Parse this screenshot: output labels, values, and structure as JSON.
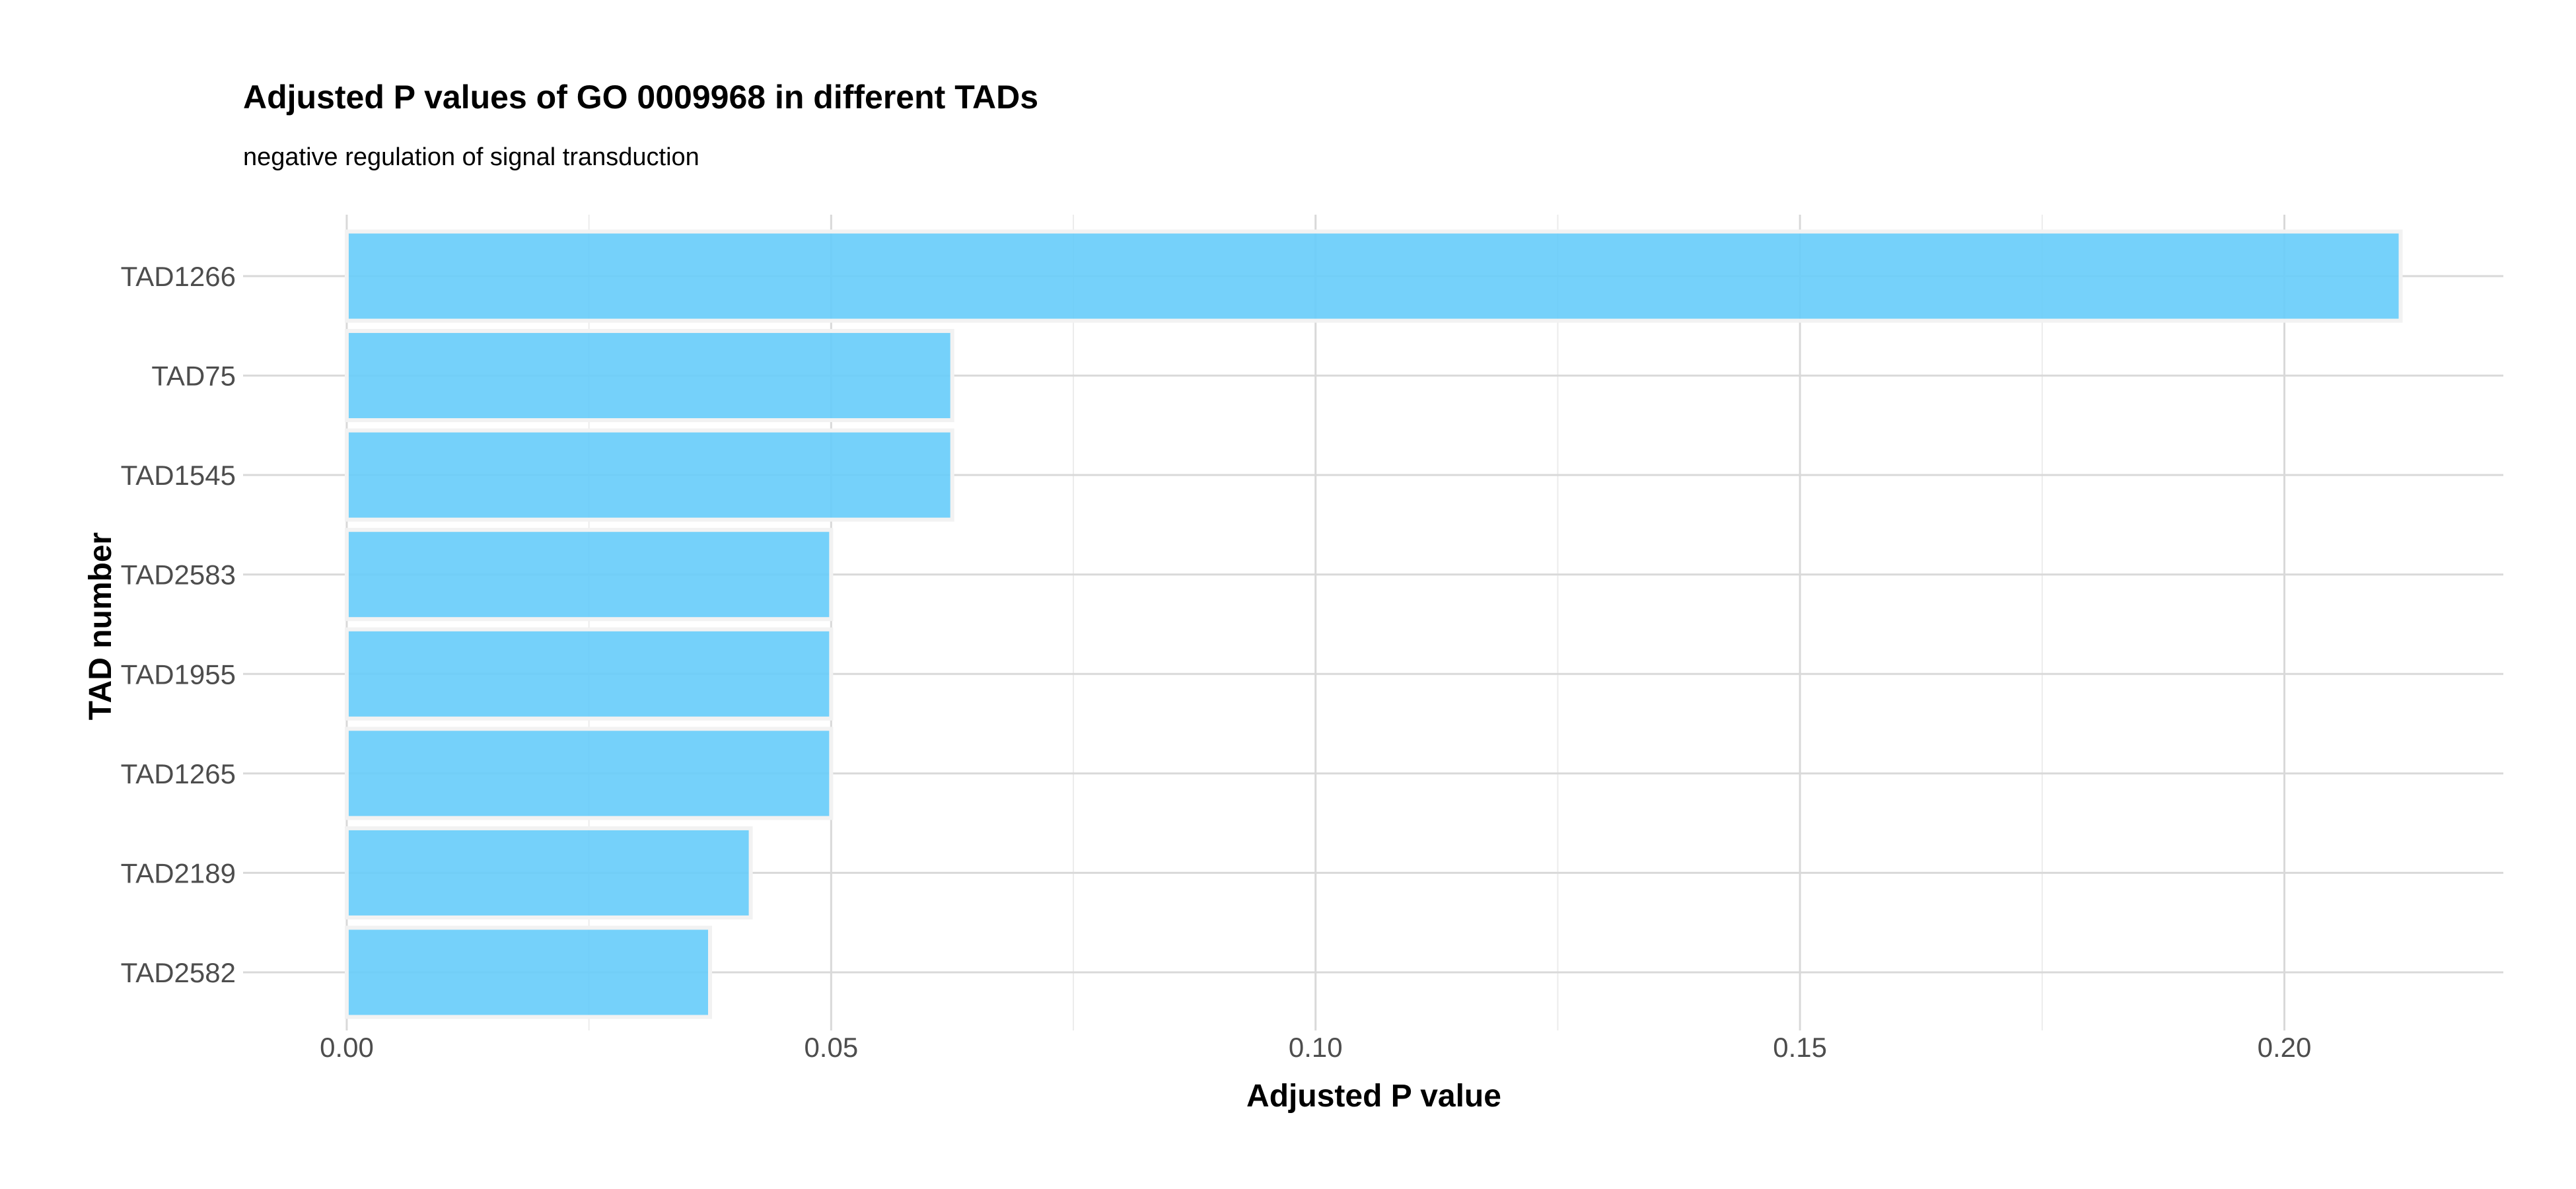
{
  "chart_data": {
    "type": "bar",
    "orientation": "horizontal",
    "title": "Adjusted P values of GO 0009968 in different TADs",
    "subtitle": "negative regulation of signal transduction",
    "xlabel": "Adjusted P value",
    "ylabel": "TAD number",
    "categories": [
      "TAD1266",
      "TAD75",
      "TAD1545",
      "TAD2583",
      "TAD1955",
      "TAD1265",
      "TAD2189",
      "TAD2582"
    ],
    "values": [
      0.212,
      0.0625,
      0.0625,
      0.05,
      0.05,
      0.05,
      0.0417,
      0.0375
    ],
    "xlim": [
      -0.0107,
      0.2226
    ],
    "x_ticks": [
      0,
      0.05,
      0.1,
      0.15,
      0.2
    ],
    "x_tick_labels": [
      "0.00",
      "0.05",
      "0.10",
      "0.15",
      "0.20"
    ],
    "bar_color": "#66ccfa",
    "grid": true,
    "legend": "none"
  }
}
